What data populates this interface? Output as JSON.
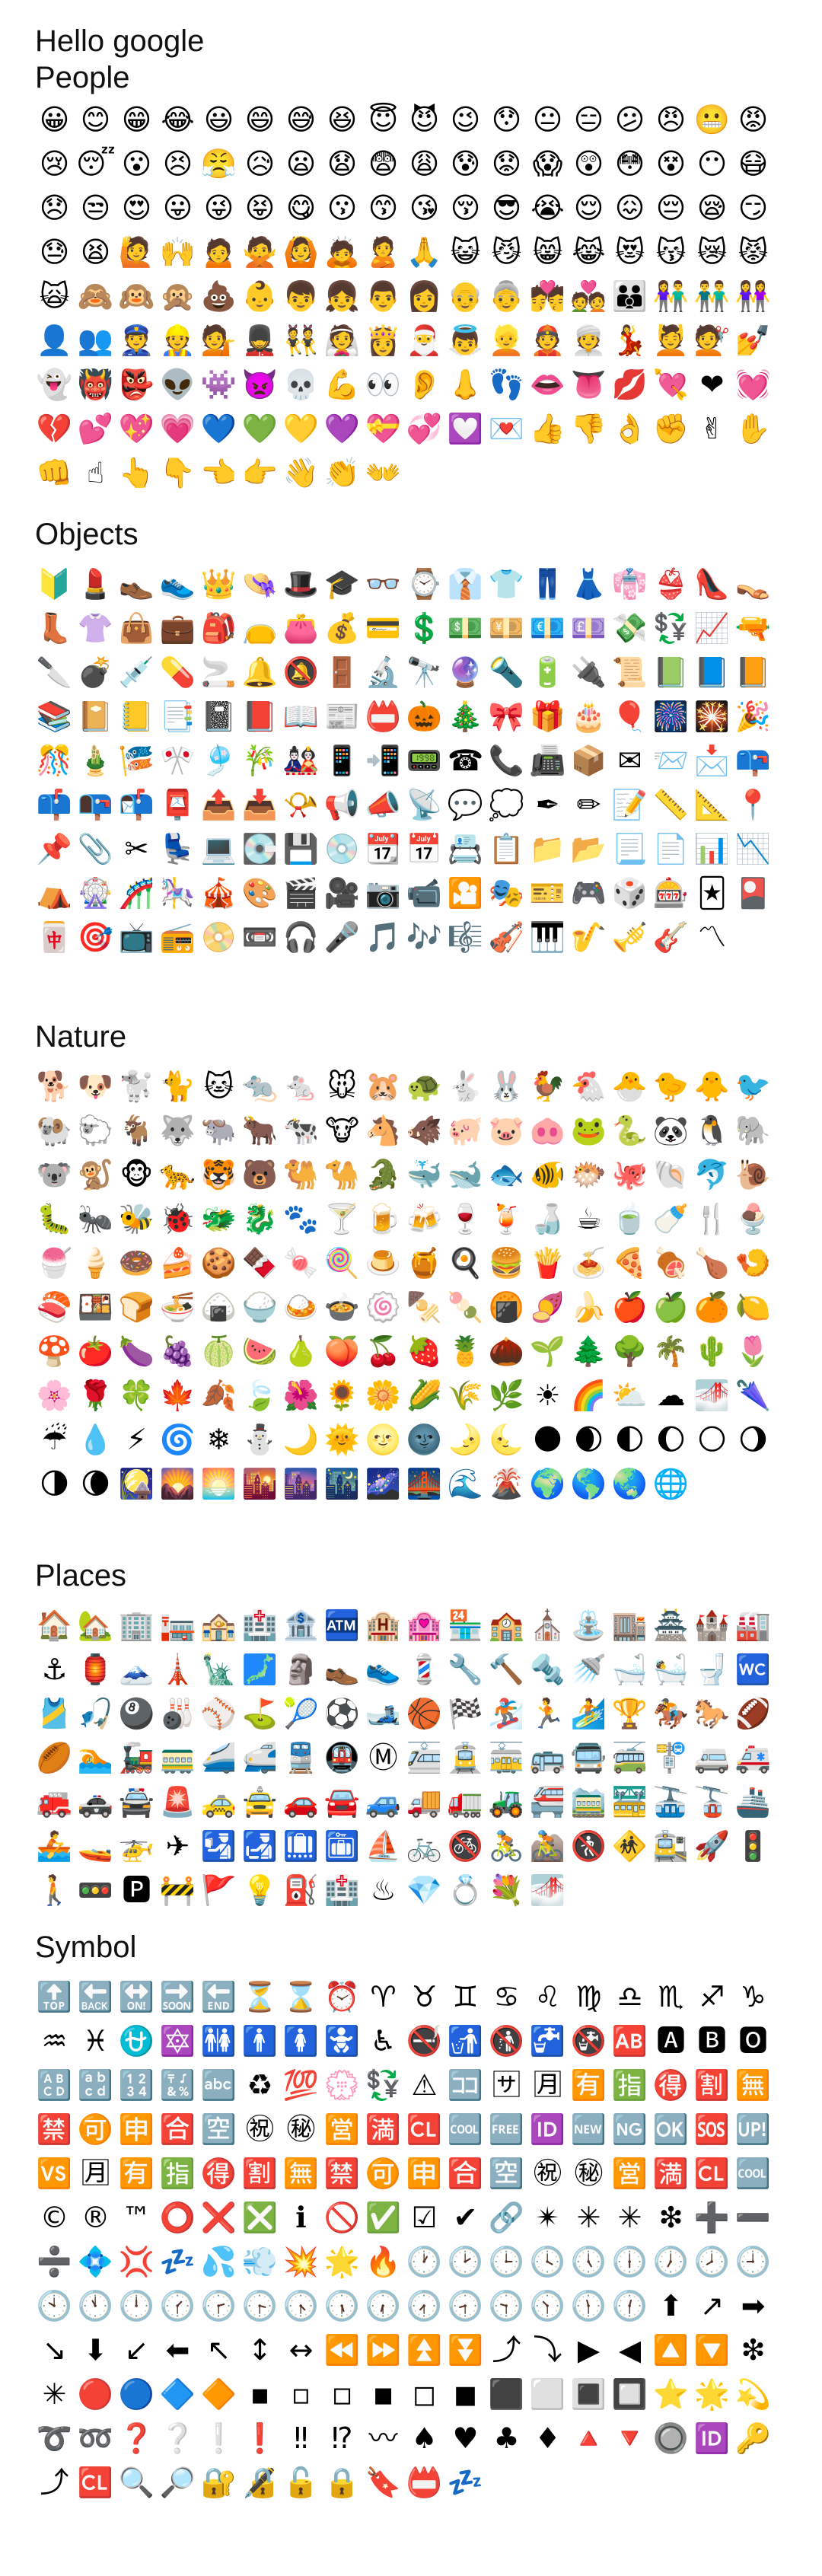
{
  "header": {
    "line1": "Hello google",
    "line2": "People"
  },
  "sections": [
    {
      "title": "",
      "emojis": [
        "😀",
        "😊",
        "😁",
        "😂",
        "😃",
        "😄",
        "😅",
        "😆",
        "😇",
        "😈",
        "😉",
        "😯",
        "😐",
        "😑",
        "😕",
        "😠",
        "😬",
        "😡",
        "😢",
        "😴",
        "😮",
        "😣",
        "😤",
        "😥",
        "😦",
        "😧",
        "😨",
        "😩",
        "😰",
        "😟",
        "😱",
        "😲",
        "😳",
        "😵",
        "😶",
        "😷",
        "😞",
        "😒",
        "😍",
        "😛",
        "😜",
        "😝",
        "😋",
        "😗",
        "😙",
        "😘",
        "😚",
        "😎",
        "😭",
        "😌",
        "😖",
        "😔",
        "😪",
        "😏",
        "😓",
        "😫",
        "🙋",
        "🙌",
        "🙍",
        "🙅",
        "🙆",
        "🙇",
        "🙎",
        "🙏",
        "😺",
        "😼",
        "😸",
        "😹",
        "😻",
        "😽",
        "😿",
        "😾",
        "🙀",
        "🙈",
        "🙉",
        "🙊",
        "💩",
        "👶",
        "👦",
        "👧",
        "👨",
        "👩",
        "👴",
        "👵",
        "💏",
        "💑",
        "👪",
        "👫",
        "👬",
        "👭",
        "👤",
        "👥",
        "👮",
        "👷",
        "💁",
        "💂",
        "👯",
        "👰",
        "👸",
        "🎅",
        "👼",
        "👱",
        "👲",
        "👳",
        "💃",
        "💆",
        "💇",
        "💅",
        "👻",
        "👹",
        "👺",
        "👽",
        "👾",
        "👿",
        "💀",
        "💪",
        "👀",
        "👂",
        "👃",
        "👣",
        "👄",
        "👅",
        "💋",
        "💘",
        "❤",
        "💓",
        "💔",
        "💕",
        "💖",
        "💗",
        "💙",
        "💚",
        "💛",
        "💜",
        "💝",
        "💞",
        "💟",
        "💌",
        "👍",
        "👎",
        "👌",
        "✊",
        "✌",
        "✋",
        "👊",
        "☝",
        "👆",
        "👇",
        "👈",
        "👉",
        "👋",
        "👏",
        "👐"
      ]
    },
    {
      "title": "Objects",
      "emojis": [
        "🔰",
        "💄",
        "👞",
        "👟",
        "👑",
        "👒",
        "🎩",
        "🎓",
        "👓",
        "⌚",
        "👔",
        "👕",
        "👖",
        "👗",
        "👘",
        "👙",
        "👠",
        "👡",
        "👢",
        "👚",
        "👜",
        "💼",
        "🎒",
        "👝",
        "👛",
        "💰",
        "💳",
        "💲",
        "💵",
        "💴",
        "💶",
        "💷",
        "💸",
        "💱",
        "📈",
        "🔫",
        "🔪",
        "💣",
        "💉",
        "💊",
        "🚬",
        "🔔",
        "🔕",
        "🚪",
        "🔬",
        "🔭",
        "🔮",
        "🔦",
        "🔋",
        "🔌",
        "📜",
        "📗",
        "📘",
        "📙",
        "📚",
        "📔",
        "📒",
        "📑",
        "📓",
        "📕",
        "📖",
        "📰",
        "📛",
        "🎃",
        "🎄",
        "🎀",
        "🎁",
        "🎂",
        "🎈",
        "🎆",
        "🎇",
        "🎉",
        "🎊",
        "🎍",
        "🎏",
        "🎌",
        "🎐",
        "🎋",
        "🎎",
        "📱",
        "📲",
        "📟",
        "☎",
        "📞",
        "📠",
        "📦",
        "✉",
        "📨",
        "📩",
        "📪",
        "📫",
        "📭",
        "📬",
        "📮",
        "📤",
        "📥",
        "📯",
        "📢",
        "📣",
        "📡",
        "💬",
        "💭",
        "✒",
        "✏",
        "📝",
        "📏",
        "📐",
        "📍",
        "📌",
        "📎",
        "✂",
        "💺",
        "💻",
        "💽",
        "💾",
        "💿",
        "📆",
        "📅",
        "📇",
        "📋",
        "📁",
        "📂",
        "📃",
        "📄",
        "📊",
        "📉",
        "⛺",
        "🎡",
        "🎢",
        "🎠",
        "🎪",
        "🎨",
        "🎬",
        "🎥",
        "📷",
        "📹",
        "🎦",
        "🎭",
        "🎫",
        "🎮",
        "🎲",
        "🎰",
        "🃏",
        "🎴",
        "🀄",
        "🎯",
        "📺",
        "📻",
        "📀",
        "📼",
        "🎧",
        "🎤",
        "🎵",
        "🎶",
        "🎼",
        "🎻",
        "🎹",
        "🎷",
        "🎺",
        "🎸",
        "〽"
      ]
    },
    {
      "title": "Nature",
      "emojis": [
        "🐕",
        "🐶",
        "🐩",
        "🐈",
        "🐱",
        "🐀",
        "🐁",
        "🐭",
        "🐹",
        "🐢",
        "🐇",
        "🐰",
        "🐓",
        "🐔",
        "🐣",
        "🐤",
        "🐥",
        "🐦",
        "🐏",
        "🐑",
        "🐐",
        "🐺",
        "🐃",
        "🐂",
        "🐄",
        "🐮",
        "🐴",
        "🐗",
        "🐖",
        "🐷",
        "🐽",
        "🐸",
        "🐍",
        "🐼",
        "🐧",
        "🐘",
        "🐨",
        "🐒",
        "🐵",
        "🐆",
        "🐯",
        "🐻",
        "🐫",
        "🐪",
        "🐊",
        "🐳",
        "🐋",
        "🐟",
        "🐠",
        "🐡",
        "🐙",
        "🐚",
        "🐬",
        "🐌",
        "🐛",
        "🐜",
        "🐝",
        "🐞",
        "🐲",
        "🐉",
        "🐾",
        "🍸",
        "🍺",
        "🍻",
        "🍷",
        "🍹",
        "🍶",
        "☕",
        "🍵",
        "🍼",
        "🍴",
        "🍨",
        "🍧",
        "🍦",
        "🍩",
        "🍰",
        "🍪",
        "🍫",
        "🍬",
        "🍭",
        "🍮",
        "🍯",
        "🍳",
        "🍔",
        "🍟",
        "🍝",
        "🍕",
        "🍖",
        "🍗",
        "🍤",
        "🍣",
        "🍱",
        "🍞",
        "🍜",
        "🍙",
        "🍚",
        "🍛",
        "🍲",
        "🍥",
        "🍢",
        "🍡",
        "🍘",
        "🍠",
        "🍌",
        "🍎",
        "🍏",
        "🍊",
        "🍋",
        "🍄",
        "🍅",
        "🍆",
        "🍇",
        "🍈",
        "🍉",
        "🍐",
        "🍑",
        "🍒",
        "🍓",
        "🍍",
        "🌰",
        "🌱",
        "🌲",
        "🌳",
        "🌴",
        "🌵",
        "🌷",
        "🌸",
        "🌹",
        "🍀",
        "🍁",
        "🍂",
        "🍃",
        "🌺",
        "🌻",
        "🌼",
        "🌽",
        "🌾",
        "🌿",
        "☀",
        "🌈",
        "⛅",
        "☁",
        "🌁",
        "🌂",
        "☔",
        "💧",
        "⚡",
        "🌀",
        "❄",
        "⛄",
        "🌙",
        "🌞",
        "🌝",
        "🌚",
        "🌛",
        "🌜",
        "🌑",
        "🌒",
        "🌓",
        "🌔",
        "🌕",
        "🌖",
        "🌗",
        "🌘",
        "🎑",
        "🌄",
        "🌅",
        "🌇",
        "🌆",
        "🌃",
        "🌌",
        "🌉",
        "🌊",
        "🌋",
        "🌍",
        "🌎",
        "🌏",
        "🌐"
      ]
    },
    {
      "title": "Places",
      "emojis": [
        "🏠",
        "🏡",
        "🏢",
        "🏣",
        "🏤",
        "🏥",
        "🏦",
        "🏧",
        "🏨",
        "🏩",
        "🏪",
        "🏫",
        "⛪",
        "⛲",
        "🏬",
        "🏯",
        "🏰",
        "🏭",
        "⚓",
        "🏮",
        "🗻",
        "🗼",
        "🗽",
        "🗾",
        "🗿",
        "👞",
        "👟",
        "💈",
        "🔧",
        "🔨",
        "🔩",
        "🚿",
        "🛁",
        "🛀",
        "🚽",
        "🚾",
        "🎽",
        "🎣",
        "🎱",
        "🎳",
        "⚾",
        "⛳",
        "🎾",
        "⚽",
        "🎿",
        "🏀",
        "🏁",
        "🏂",
        "🏃",
        "🏄",
        "🏆",
        "🏇",
        "🐎",
        "🏈",
        "🏉",
        "🏊",
        "🚂",
        "🚃",
        "🚄",
        "🚅",
        "🚆",
        "🚇",
        "Ⓜ",
        "🚈",
        "🚊",
        "🚋",
        "🚌",
        "🚍",
        "🚎",
        "🚏",
        "🚐",
        "🚑",
        "🚒",
        "🚓",
        "🚔",
        "🚨",
        "🚕",
        "🚖",
        "🚗",
        "🚘",
        "🚙",
        "🚚",
        "🚛",
        "🚜",
        "🚝",
        "🚞",
        "🚟",
        "🚠",
        "🚡",
        "🚢",
        "🚣",
        "🚤",
        "🚁",
        "✈",
        "🛂",
        "🛃",
        "🛄",
        "🛅",
        "⛵",
        "🚲",
        "🚳",
        "🚴",
        "🚵",
        "🚷",
        "🚸",
        "🚉",
        "🚀",
        "🚦",
        "🚶",
        "🚥",
        "🅿",
        "🚧",
        "🚩",
        "💡",
        "⛽",
        "🏥",
        "♨",
        "💎",
        "💍",
        "💐",
        "🌁"
      ]
    },
    {
      "title": "Symbol",
      "emojis": [
        "🔝",
        "🔙",
        "🔛",
        "🔜",
        "🔚",
        "⏳",
        "⌛",
        "⏰",
        "♈",
        "♉",
        "♊",
        "♋",
        "♌",
        "♍",
        "♎",
        "♏",
        "♐",
        "♑",
        "♒",
        "♓",
        "⛎",
        "🔯",
        "🚻",
        "🚹",
        "🚺",
        "🚼",
        "♿",
        "🚭",
        "🚮",
        "🚯",
        "🚰",
        "🚱",
        "🆎",
        "🅰",
        "🅱",
        "🅾",
        "🔠",
        "🔡",
        "🔢",
        "🔣",
        "🔤",
        "♻",
        "💯",
        "💮",
        "💱",
        "⚠",
        "🈁",
        "🈂",
        "🈷",
        "🈶",
        "🈯",
        "🉐",
        "🈹",
        "🈚",
        "🈲",
        "🉑",
        "🈸",
        "🈴",
        "🈳",
        "㊗",
        "㊙",
        "🈺",
        "🈵",
        "🆑",
        "🆒",
        "🆓",
        "🆔",
        "🆕",
        "🆖",
        "🆗",
        "🆘",
        "🆙",
        "🆚",
        "🈷",
        "🈶",
        "🈯",
        "🉐",
        "🈹",
        "🈚",
        "🈲",
        "🉑",
        "🈸",
        "🈴",
        "🈳",
        "㊗",
        "㊙",
        "🈺",
        "🈵",
        "🆑",
        "🆒",
        "©",
        "®",
        "™",
        "⭕",
        "❌",
        "❎",
        "ℹ",
        "🚫",
        "✅",
        "☑",
        "✔",
        "🔗",
        "✴",
        "✳",
        "✳",
        "❇",
        "➕",
        "➖",
        "➗",
        "💠",
        "💢",
        "💤",
        "💦",
        "💨",
        "💥",
        "🌟",
        "🔥",
        "🕐",
        "🕑",
        "🕒",
        "🕓",
        "🕔",
        "🕕",
        "🕖",
        "🕗",
        "🕘",
        "🕙",
        "🕚",
        "🕛",
        "🕜",
        "🕝",
        "🕞",
        "🕟",
        "🕠",
        "🕡",
        "🕢",
        "🕣",
        "🕤",
        "🕥",
        "🕦",
        "🕧",
        "⬆",
        "↗",
        "➡",
        "↘",
        "⬇",
        "↙",
        "⬅",
        "↖",
        "↕",
        "↔",
        "⏪",
        "⏩",
        "⏫",
        "⏬",
        "⤴",
        "⤵",
        "▶",
        "◀",
        "🔼",
        "🔽",
        "❇",
        "✳",
        "🔴",
        "🔵",
        "🔷",
        "🔶",
        "▪",
        "▫",
        "◽",
        "◾",
        "◻",
        "◼",
        "⬛",
        "⬜",
        "🔳",
        "🔲",
        "⭐",
        "🌟",
        "💫",
        "➰",
        "➿",
        "❓",
        "❔",
        "❕",
        "❗",
        "‼",
        "⁉",
        "〰",
        "♠",
        "♥",
        "♣",
        "♦",
        "🔺",
        "🔻",
        "🔘",
        "🆔",
        "🔑",
        "⤴",
        "🆑",
        "🔍",
        "🔎",
        "🔐",
        "🔏",
        "🔓",
        "🔒",
        "🔖",
        "📛",
        "💤"
      ]
    }
  ]
}
